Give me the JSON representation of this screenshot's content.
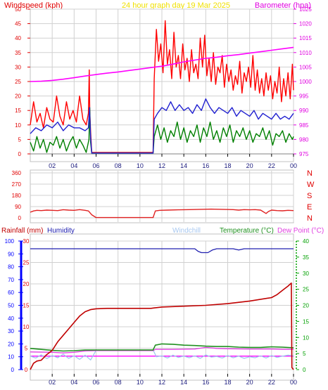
{
  "header": {
    "left_label": "Windspeed (kph)",
    "center_title": "24 hour graph day   19 Mar 2025",
    "right_label": "Barometer (hpa)"
  },
  "colors": {
    "wind_gust": "#ff0000",
    "wind_avg": "#2020d0",
    "wind_min": "#008000",
    "barometer": "#ff00ff",
    "direction": "#e02020",
    "humidity": "#2020b0",
    "rainfall": "#c00000",
    "temperature": "#209020",
    "dewpoint": "#e040e0",
    "windchill": "#a0c8f0",
    "frame": "#c0c0c0",
    "grid": "#d0d0d0",
    "left_axis": "#e00000",
    "right_axis_top": "#e000e0",
    "right_axis_bottom": "#00a000",
    "humidity_axis": "#0000ff"
  },
  "chart_data": [
    {
      "type": "line",
      "name": "wind-barometer",
      "x_ticks": [
        "02",
        "04",
        "06",
        "08",
        "10",
        "12",
        "14",
        "16",
        "18",
        "20",
        "22",
        "00"
      ],
      "xlim": [
        0,
        24
      ],
      "ylim": [
        0,
        50
      ],
      "y_ticks": [
        0,
        5,
        10,
        15,
        20,
        25,
        30,
        35,
        40,
        45,
        50
      ],
      "y2lim": [
        975,
        1025
      ],
      "y2_ticks": [
        975,
        980,
        985,
        990,
        995,
        1000,
        1005,
        1010,
        1015,
        1020,
        1025
      ],
      "series": [
        {
          "key": "gust",
          "x": [
            0.0,
            0.3,
            0.6,
            0.9,
            1.2,
            1.5,
            1.8,
            2.1,
            2.4,
            2.7,
            3.0,
            3.3,
            3.6,
            3.9,
            4.2,
            4.5,
            4.8,
            5.1,
            5.3,
            5.38,
            5.42,
            5.5,
            5.6,
            11.2,
            11.3,
            11.5,
            11.7,
            11.9,
            12.1,
            12.3,
            12.5,
            12.7,
            12.9,
            13.1,
            13.3,
            13.5,
            13.7,
            13.9,
            14.1,
            14.3,
            14.5,
            14.7,
            14.9,
            15.1,
            15.3,
            15.5,
            15.7,
            15.9,
            16.1,
            16.3,
            16.5,
            16.7,
            16.9,
            17.1,
            17.3,
            17.5,
            17.7,
            17.9,
            18.1,
            18.3,
            18.5,
            18.7,
            18.9,
            19.1,
            19.3,
            19.5,
            19.7,
            19.9,
            20.1,
            20.3,
            20.5,
            20.7,
            20.9,
            21.1,
            21.3,
            21.5,
            21.7,
            21.9,
            22.1,
            22.3,
            22.5,
            22.7,
            22.9,
            23.1,
            23.3,
            23.5,
            23.7,
            23.9,
            24.0
          ],
          "y": [
            10,
            18,
            11,
            14,
            9,
            16,
            12,
            11,
            20,
            13,
            10,
            18,
            12,
            15,
            11,
            20,
            12,
            10,
            14,
            29,
            15,
            8,
            0.5,
            0.5,
            26,
            43,
            32,
            38,
            28,
            46,
            31,
            36,
            26,
            42,
            30,
            34,
            26,
            38,
            29,
            33,
            25,
            36,
            28,
            31,
            26,
            40,
            30,
            41,
            27,
            33,
            25,
            35,
            24,
            30,
            28,
            34,
            23,
            31,
            25,
            29,
            22,
            27,
            24,
            32,
            21,
            28,
            25,
            30,
            23,
            34,
            22,
            29,
            21,
            26,
            20,
            28,
            22,
            27,
            19,
            25,
            21,
            30,
            18,
            26,
            20,
            28,
            19,
            31,
            22
          ]
        },
        {
          "key": "avg",
          "x": [
            0.0,
            0.5,
            1.0,
            1.5,
            2.0,
            2.5,
            3.0,
            3.5,
            4.0,
            4.5,
            5.0,
            5.3,
            5.4,
            5.5,
            5.6,
            11.2,
            11.3,
            11.6,
            12.0,
            12.4,
            12.8,
            13.2,
            13.6,
            14.0,
            14.4,
            14.8,
            15.2,
            15.6,
            16.0,
            16.4,
            16.8,
            17.2,
            17.6,
            18.0,
            18.4,
            18.8,
            19.2,
            19.6,
            20.0,
            20.4,
            20.8,
            21.2,
            21.6,
            22.0,
            22.4,
            22.8,
            23.2,
            23.6,
            24.0
          ],
          "y": [
            7,
            9,
            8,
            10,
            9,
            11,
            8,
            10,
            9,
            9,
            8,
            9,
            16,
            6,
            0.3,
            0.3,
            12,
            14,
            16,
            15,
            18,
            15,
            17,
            15,
            16,
            14,
            17,
            15,
            19,
            16,
            14,
            16,
            15,
            14,
            16,
            13,
            15,
            14,
            13,
            15,
            12,
            14,
            13,
            12,
            14,
            12,
            13,
            12,
            14
          ]
        },
        {
          "key": "min",
          "x": [
            0.0,
            0.3,
            0.6,
            0.9,
            1.2,
            1.5,
            1.8,
            2.1,
            2.4,
            2.7,
            3.0,
            3.3,
            3.6,
            3.9,
            4.2,
            4.5,
            4.8,
            5.1,
            5.35,
            5.42,
            5.5,
            5.6,
            11.2,
            11.3,
            11.6,
            11.9,
            12.2,
            12.5,
            12.8,
            13.1,
            13.4,
            13.7,
            14.0,
            14.3,
            14.6,
            14.9,
            15.2,
            15.5,
            15.8,
            16.1,
            16.4,
            16.7,
            17.0,
            17.3,
            17.6,
            17.9,
            18.2,
            18.5,
            18.8,
            19.1,
            19.4,
            19.7,
            20.0,
            20.3,
            20.6,
            20.9,
            21.2,
            21.5,
            21.8,
            22.1,
            22.4,
            22.7,
            23.0,
            23.3,
            23.6,
            23.9,
            24.0
          ],
          "y": [
            4,
            1,
            6,
            2,
            5,
            0.5,
            4,
            3,
            6,
            2,
            5,
            1,
            4,
            6,
            2,
            5,
            3,
            0.5,
            5,
            16,
            4,
            0.3,
            0.3,
            6,
            10,
            5,
            9,
            4,
            8,
            6,
            11,
            5,
            9,
            4,
            8,
            6,
            10,
            4,
            9,
            6,
            11,
            5,
            8,
            4,
            9,
            6,
            10,
            4,
            8,
            6,
            9,
            5,
            8,
            4,
            7,
            6,
            9,
            5,
            8,
            3,
            7,
            6,
            8,
            4,
            7,
            5,
            6
          ]
        },
        {
          "key": "barometer",
          "axis": "y2",
          "x": [
            0.0,
            1.0,
            2.0,
            3.0,
            4.0,
            5.0,
            6.0,
            7.0,
            8.0,
            9.0,
            10.0,
            11.0,
            12.0,
            13.0,
            14.0,
            15.0,
            16.0,
            17.0,
            18.0,
            19.0,
            20.0,
            21.0,
            22.0,
            23.0,
            24.0
          ],
          "y": [
            1000.0,
            1000.1,
            1000.4,
            1000.8,
            1001.3,
            1001.9,
            1002.4,
            1002.9,
            1003.3,
            1003.8,
            1004.3,
            1004.8,
            1005.3,
            1006.0,
            1006.8,
            1007.4,
            1008.0,
            1008.4,
            1008.9,
            1009.3,
            1009.8,
            1010.3,
            1010.8,
            1011.3,
            1011.8
          ]
        }
      ]
    },
    {
      "type": "line",
      "name": "wind-direction",
      "x_ticks": [
        "02",
        "04",
        "06",
        "08",
        "10",
        "12",
        "14",
        "16",
        "18",
        "20",
        "22",
        "00"
      ],
      "xlim": [
        0,
        24
      ],
      "ylim": [
        0,
        360
      ],
      "y_ticks": [
        0,
        90,
        180,
        270,
        360
      ],
      "right_labels": [
        "N",
        "W",
        "S",
        "E",
        "N"
      ],
      "series": [
        {
          "key": "direction",
          "x": [
            0.0,
            0.3,
            0.6,
            1.0,
            1.5,
            2.0,
            2.5,
            3.0,
            3.5,
            4.0,
            4.5,
            5.0,
            5.3,
            5.6,
            6.0,
            11.2,
            11.4,
            11.8,
            12.5,
            13.5,
            14.5,
            15.5,
            16.5,
            17.5,
            18.5,
            19.0,
            19.5,
            20.0,
            20.5,
            21.0,
            21.5,
            21.7,
            22.0,
            22.5,
            23.0,
            23.5,
            24.0
          ],
          "y": [
            45,
            55,
            60,
            58,
            62,
            60,
            58,
            65,
            62,
            60,
            66,
            60,
            55,
            25,
            2,
            2,
            55,
            60,
            62,
            64,
            66,
            68,
            70,
            68,
            66,
            62,
            66,
            64,
            66,
            62,
            35,
            50,
            62,
            58,
            56,
            60,
            58
          ]
        }
      ]
    },
    {
      "type": "line",
      "name": "rain-humidity-temperature",
      "x_ticks": [
        "02",
        "04",
        "06",
        "08",
        "10",
        "12",
        "14",
        "16",
        "18",
        "20",
        "22",
        "00"
      ],
      "xlim": [
        0,
        24
      ],
      "ylim": [
        0,
        30
      ],
      "y_ticks": [
        0,
        5,
        10,
        15,
        20,
        25,
        30
      ],
      "humidity_lim": [
        0,
        100
      ],
      "humidity_ticks": [
        0,
        10,
        20,
        30,
        40,
        50,
        60,
        70,
        80,
        90,
        100
      ],
      "temp_lim": [
        0,
        40
      ],
      "temp_ticks": [
        0,
        5,
        10,
        15,
        20,
        25,
        30,
        35,
        40
      ],
      "axis_labels": {
        "rainfall": "Rainfall (mm)",
        "humidity": "Humidity",
        "windchill": "Windchill",
        "temperature": "Temperature (°C)",
        "dewpoint": "Dew Point (°C)"
      },
      "series": [
        {
          "key": "humidity",
          "axis": "humidity",
          "x": [
            0.0,
            15.0,
            15.3,
            15.6,
            16.2,
            16.6,
            17.0,
            18.5,
            19.0,
            19.5,
            24.0
          ],
          "y": [
            94,
            94,
            92,
            91,
            91,
            93,
            94,
            94,
            93,
            94,
            94
          ]
        },
        {
          "key": "rainfall",
          "axis": "rain",
          "x": [
            0.0,
            0.3,
            0.6,
            1.0,
            1.5,
            2.0,
            2.5,
            3.0,
            3.5,
            4.0,
            4.5,
            5.0,
            5.5,
            6.0,
            7.0,
            9.0,
            11.0,
            11.3,
            12.0,
            14.0,
            16.0,
            18.0,
            20.0,
            22.0,
            22.5,
            23.0,
            23.5,
            23.8,
            23.85,
            24.0
          ],
          "y": [
            0,
            1.5,
            2,
            2.2,
            3.5,
            4.5,
            6.5,
            8,
            9.5,
            11,
            12.5,
            13.5,
            14,
            14.2,
            14.3,
            14.3,
            14.3,
            14.4,
            14.6,
            14.8,
            15,
            15.4,
            16,
            16.8,
            17.5,
            18.5,
            19.5,
            20.2,
            0.5,
            0
          ]
        },
        {
          "key": "temperature",
          "axis": "temp",
          "x": [
            0.0,
            1.0,
            2.0,
            3.0,
            4.0,
            5.0,
            6.0,
            8.0,
            10.0,
            11.2,
            11.4,
            12.0,
            13.0,
            14.0,
            15.0,
            16.0,
            17.0,
            18.0,
            19.0,
            20.0,
            21.0,
            22.0,
            23.0,
            24.0
          ],
          "y": [
            6.6,
            6.3,
            6.0,
            5.8,
            5.9,
            6.1,
            6.1,
            6.1,
            6.1,
            6.1,
            7.6,
            8.0,
            7.9,
            7.6,
            7.5,
            7.3,
            7.2,
            7.2,
            7.0,
            6.9,
            6.9,
            7.1,
            7.0,
            6.8
          ]
        },
        {
          "key": "dewpoint",
          "axis": "temp",
          "x": [
            0.0,
            2.0,
            3.0,
            4.0,
            5.0,
            6.0,
            8.0,
            10.0,
            11.2,
            11.4,
            13.0,
            15.0,
            16.0,
            17.0,
            18.0,
            20.0,
            22.0,
            23.0,
            24.0
          ],
          "y": [
            5.5,
            5.4,
            5.2,
            5.4,
            5.8,
            5.9,
            5.9,
            5.9,
            5.9,
            6.3,
            6.3,
            6.4,
            6.9,
            6.6,
            6.5,
            6.4,
            6.4,
            6.3,
            6.3
          ]
        },
        {
          "key": "windchill",
          "axis": "temp",
          "x": [
            0.0,
            0.5,
            1.0,
            1.5,
            2.0,
            2.5,
            3.0,
            3.5,
            4.0,
            4.5,
            5.0,
            5.5,
            6.0,
            8.0,
            10.0,
            11.2,
            11.5,
            12.0,
            12.5,
            13.0,
            13.5,
            14.0,
            14.5,
            15.0,
            15.5,
            16.0,
            16.5,
            17.0,
            17.5,
            18.0,
            18.5,
            19.0,
            19.5,
            20.0,
            20.5,
            21.0,
            21.5,
            22.0,
            22.5,
            23.0,
            23.5,
            24.0
          ],
          "y": [
            4.2,
            3.6,
            4.6,
            3.4,
            4.4,
            3.7,
            4.8,
            3.5,
            4.3,
            3.2,
            4.5,
            3.0,
            6.0,
            6.1,
            6.1,
            6.1,
            4.0,
            4.3,
            3.6,
            4.5,
            3.8,
            4.2,
            3.7,
            4.3,
            3.5,
            4.6,
            3.9,
            4.1,
            3.6,
            4.4,
            3.7,
            4.2,
            3.5,
            4.0,
            3.7,
            4.3,
            3.6,
            4.4,
            3.8,
            4.2,
            4.5,
            4.3
          ]
        },
        {
          "key": "ref_line",
          "axis": "temp",
          "x": [
            0.0,
            24.0
          ],
          "y": [
            4.2,
            4.2
          ]
        }
      ]
    }
  ]
}
